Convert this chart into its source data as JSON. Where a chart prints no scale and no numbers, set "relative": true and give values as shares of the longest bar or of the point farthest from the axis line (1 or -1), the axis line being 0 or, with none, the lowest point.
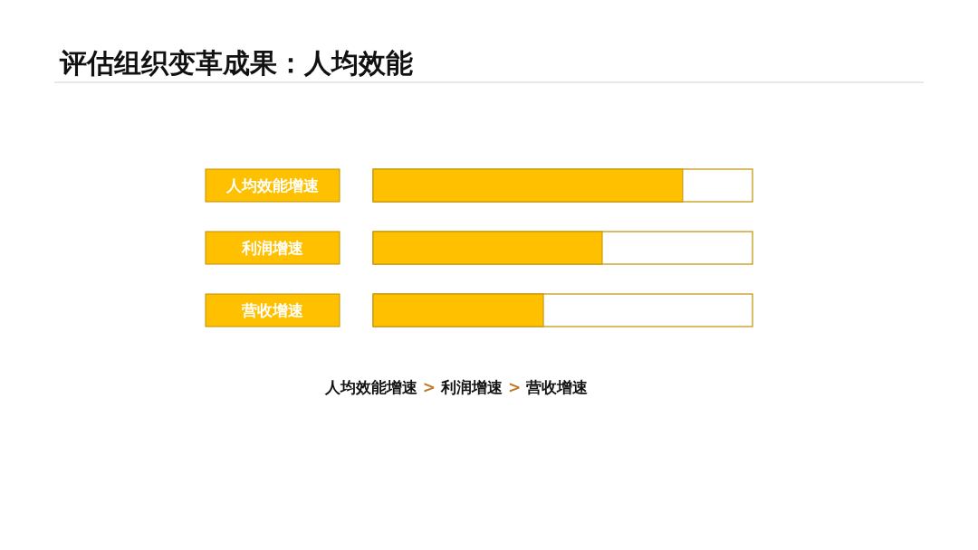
{
  "chart_data": {
    "type": "bar",
    "orientation": "horizontal",
    "relative": true,
    "title": "评估组织变革成果：人均效能",
    "categories": [
      "人均效能增速",
      "利润增速",
      "营收增速"
    ],
    "values": [
      1,
      0.74,
      0.55
    ],
    "color": "#ffc000",
    "annotations": [
      "人均效能增速 > 利润增速 > 营收增速"
    ]
  }
}
